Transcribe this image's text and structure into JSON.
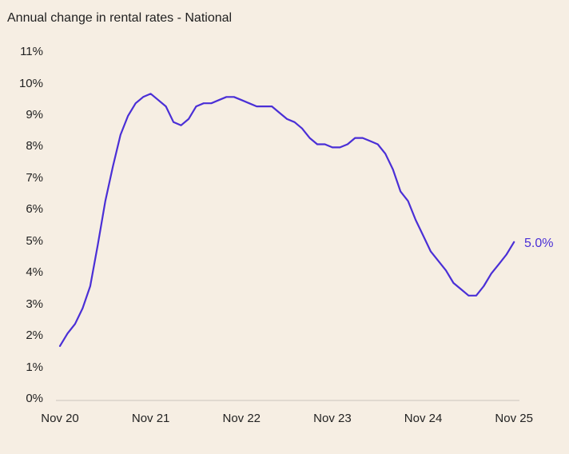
{
  "title": "Annual change in rental rates - National",
  "accent_color": "#4a2fd6",
  "end_label": "5.0%",
  "y_ticks": [
    "0%",
    "1%",
    "2%",
    "3%",
    "4%",
    "5%",
    "6%",
    "7%",
    "8%",
    "9%",
    "10%",
    "11%"
  ],
  "x_ticks": [
    "Nov 20",
    "Nov 21",
    "Nov 22",
    "Nov 23",
    "Nov 24",
    "Nov 25"
  ],
  "chart_data": {
    "type": "line",
    "title": "Annual change in rental rates - National",
    "xlabel": "",
    "ylabel": "",
    "ylim": [
      0,
      11
    ],
    "grid": false,
    "legend": "none",
    "x_tick_labels": [
      "Nov 20",
      "Nov 21",
      "Nov 22",
      "Nov 23",
      "Nov 24",
      "Nov 25"
    ],
    "y_tick_labels": [
      "0%",
      "1%",
      "2%",
      "3%",
      "4%",
      "5%",
      "6%",
      "7%",
      "8%",
      "9%",
      "10%",
      "11%"
    ],
    "annotations": [
      {
        "text": "5.0%",
        "at": "Nov 25"
      }
    ],
    "series": [
      {
        "name": "National",
        "color": "#4a2fd6",
        "x_months_from_nov20": [
          0,
          1,
          2,
          3,
          4,
          5,
          6,
          7,
          8,
          9,
          10,
          11,
          12,
          13,
          14,
          15,
          16,
          17,
          18,
          19,
          20,
          21,
          22,
          23,
          24,
          25,
          26,
          27,
          28,
          29,
          30,
          31,
          32,
          33,
          34,
          35,
          36,
          37,
          38,
          39,
          40,
          41,
          42,
          43,
          44,
          45,
          46,
          47,
          48,
          49,
          50,
          51,
          52,
          53,
          54,
          55,
          56,
          57,
          58,
          59,
          60
        ],
        "values": [
          1.7,
          2.1,
          2.4,
          2.9,
          3.6,
          4.9,
          6.3,
          7.4,
          8.4,
          9.0,
          9.4,
          9.6,
          9.7,
          9.5,
          9.3,
          8.8,
          8.7,
          8.9,
          9.3,
          9.4,
          9.4,
          9.5,
          9.6,
          9.6,
          9.5,
          9.4,
          9.3,
          9.3,
          9.3,
          9.1,
          8.9,
          8.8,
          8.6,
          8.3,
          8.1,
          8.1,
          8.0,
          8.0,
          8.1,
          8.3,
          8.3,
          8.2,
          8.1,
          7.8,
          7.3,
          6.6,
          6.3,
          5.7,
          5.2,
          4.7,
          4.4,
          4.1,
          3.7,
          3.5,
          3.3,
          3.3,
          3.6,
          4.0,
          4.3,
          4.6,
          5.0
        ]
      }
    ]
  }
}
